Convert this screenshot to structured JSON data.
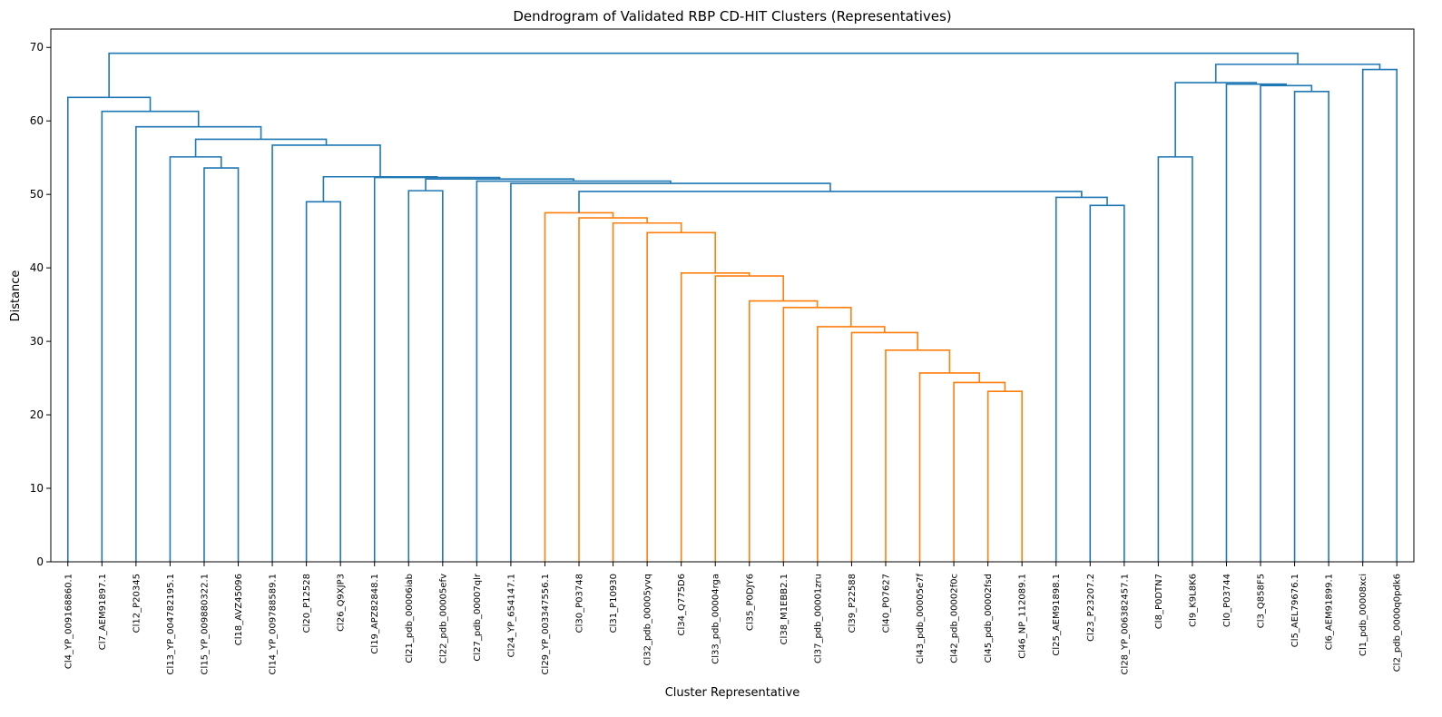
{
  "chart_data": {
    "type": "dendrogram",
    "title": "Dendrogram of Validated RBP CD-HIT Clusters (Representatives)",
    "xlabel": "Cluster Representative",
    "ylabel": "Distance",
    "ylim": [
      0,
      72.5
    ],
    "yticks": [
      0,
      10,
      20,
      30,
      40,
      50,
      60,
      70
    ],
    "grid": false,
    "colors": {
      "above_threshold": "#1f77b4",
      "cluster_1": "#ff7f0e"
    },
    "leaves": [
      "Cl4_YP_009168860.1",
      "Cl7_AEM91897.1",
      "Cl12_P20345",
      "Cl13_YP_004782195.1",
      "Cl15_YP_009880322.1",
      "Cl18_AVZ45096",
      "Cl14_YP_009788589.1",
      "Cl20_P12528",
      "Cl26_Q9XJP3",
      "Cl19_APZ82848.1",
      "Cl21_pdb_00006iab",
      "Cl22_pdb_00005efv",
      "Cl27_pdb_00007qlr",
      "Cl24_YP_654147.1",
      "Cl29_YP_003347556.1",
      "Cl30_P03748",
      "Cl31_P10930",
      "Cl32_pdb_00005yvq",
      "Cl34_Q775D6",
      "Cl33_pdb_00004rga",
      "Cl35_P0DJY6",
      "Cl38_M1EBB2.1",
      "Cl37_pdb_00001zru",
      "Cl39_P22588",
      "Cl40_P07627",
      "Cl43_pdb_00005e7f",
      "Cl42_pdb_00002f0c",
      "Cl45_pdb_00002fsd",
      "Cl46_NP_112089.1",
      "Cl25_AEM91898.1",
      "Cl23_P23207.2",
      "Cl28_YP_006382457.1",
      "Cl8_P0DTN7",
      "Cl9_K9L8K6",
      "Cl0_P03744",
      "Cl3_Q858F5",
      "Cl5_AEL79676.1",
      "Cl6_AEM91899.1",
      "Cl1_pdb_00008xci",
      "Cl2_pdb_0000q0pdk6"
    ],
    "merges": [
      {
        "a": "Cl5_AEL79676.1",
        "b": "Cl6_AEM91899.1",
        "distance": 64.0,
        "color": "above_threshold"
      },
      {
        "a": "Cl3_Q858F5",
        "b": "m1",
        "distance": 64.8,
        "color": "above_threshold"
      },
      {
        "a": "Cl0_P03744",
        "b": "m2",
        "distance": 65.0,
        "color": "above_threshold"
      },
      {
        "a": "Cl8_P0DTN7",
        "b": "Cl9_K9L8K6",
        "distance": 55.1,
        "color": "above_threshold"
      },
      {
        "a": "m4",
        "b": "m3",
        "distance": 65.2,
        "color": "above_threshold"
      },
      {
        "a": "Cl1_pdb_00008xci",
        "b": "Cl2_pdb_0000q0pdk6",
        "distance": 67.0,
        "color": "above_threshold"
      },
      {
        "a": "m5",
        "b": "m6",
        "distance": 67.7,
        "color": "above_threshold"
      },
      {
        "a": "Cl45_pdb_00002fsd",
        "b": "Cl46_NP_112089.1",
        "distance": 23.2,
        "color": "cluster_1"
      },
      {
        "a": "Cl42_pdb_00002f0c",
        "b": "m8",
        "distance": 24.4,
        "color": "cluster_1"
      },
      {
        "a": "Cl43_pdb_00005e7f",
        "b": "m9",
        "distance": 25.7,
        "color": "cluster_1"
      },
      {
        "a": "Cl40_P07627",
        "b": "m10",
        "distance": 28.8,
        "color": "cluster_1"
      },
      {
        "a": "Cl39_P22588",
        "b": "m11",
        "distance": 31.2,
        "color": "cluster_1"
      },
      {
        "a": "Cl37_pdb_00001zru",
        "b": "m12",
        "distance": 32.0,
        "color": "cluster_1"
      },
      {
        "a": "Cl38_M1EBB2.1",
        "b": "m13",
        "distance": 34.6,
        "color": "cluster_1"
      },
      {
        "a": "Cl35_P0DJY6",
        "b": "m14",
        "distance": 35.5,
        "color": "cluster_1"
      },
      {
        "a": "Cl33_pdb_00004rga",
        "b": "m15",
        "distance": 38.9,
        "color": "cluster_1"
      },
      {
        "a": "Cl34_Q775D6",
        "b": "m16",
        "distance": 39.3,
        "color": "cluster_1"
      },
      {
        "a": "Cl32_pdb_00005yvq",
        "b": "m17",
        "distance": 44.8,
        "color": "cluster_1"
      },
      {
        "a": "Cl31_P10930",
        "b": "m18",
        "distance": 46.1,
        "color": "cluster_1"
      },
      {
        "a": "Cl30_P03748",
        "b": "m19",
        "distance": 46.8,
        "color": "cluster_1"
      },
      {
        "a": "Cl29_YP_003347556.1",
        "b": "m20",
        "distance": 47.5,
        "color": "cluster_1"
      },
      {
        "a": "Cl23_P23207.2",
        "b": "Cl28_YP_006382457.1",
        "distance": 48.5,
        "color": "above_threshold"
      },
      {
        "a": "Cl25_AEM91898.1",
        "b": "m22",
        "distance": 49.6,
        "color": "above_threshold"
      },
      {
        "a": "m21",
        "b": "m23",
        "distance": 50.4,
        "color": "above_threshold"
      },
      {
        "a": "Cl24_YP_654147.1",
        "b": "m24",
        "distance": 51.5,
        "color": "above_threshold"
      },
      {
        "a": "Cl27_pdb_00007qlr",
        "b": "m25",
        "distance": 51.8,
        "color": "above_threshold"
      },
      {
        "a": "Cl21_pdb_00006iab",
        "b": "Cl22_pdb_00005efv",
        "distance": 50.5,
        "color": "above_threshold"
      },
      {
        "a": "m27",
        "b": "m26",
        "distance": 52.1,
        "color": "above_threshold"
      },
      {
        "a": "Cl19_APZ82848.1",
        "b": "m28",
        "distance": 52.3,
        "color": "above_threshold"
      },
      {
        "a": "Cl20_P12528",
        "b": "Cl26_Q9XJP3",
        "distance": 49.0,
        "color": "above_threshold"
      },
      {
        "a": "m30",
        "b": "m29",
        "distance": 52.4,
        "color": "above_threshold"
      },
      {
        "a": "Cl14_YP_009788589.1",
        "b": "m31",
        "distance": 56.7,
        "color": "above_threshold"
      },
      {
        "a": "Cl15_YP_009880322.1",
        "b": "Cl18_AVZ45096",
        "distance": 53.6,
        "color": "above_threshold"
      },
      {
        "a": "Cl13_YP_004782195.1",
        "b": "m33",
        "distance": 55.1,
        "color": "above_threshold"
      },
      {
        "a": "m34",
        "b": "m32",
        "distance": 57.5,
        "color": "above_threshold"
      },
      {
        "a": "Cl12_P20345",
        "b": "m35",
        "distance": 59.2,
        "color": "above_threshold"
      },
      {
        "a": "Cl7_AEM91897.1",
        "b": "m36",
        "distance": 61.3,
        "color": "above_threshold"
      },
      {
        "a": "Cl4_YP_009168860.1",
        "b": "m37",
        "distance": 63.2,
        "color": "above_threshold"
      },
      {
        "a": "m38",
        "b": "m7",
        "distance": 69.2,
        "color": "above_threshold"
      }
    ]
  }
}
